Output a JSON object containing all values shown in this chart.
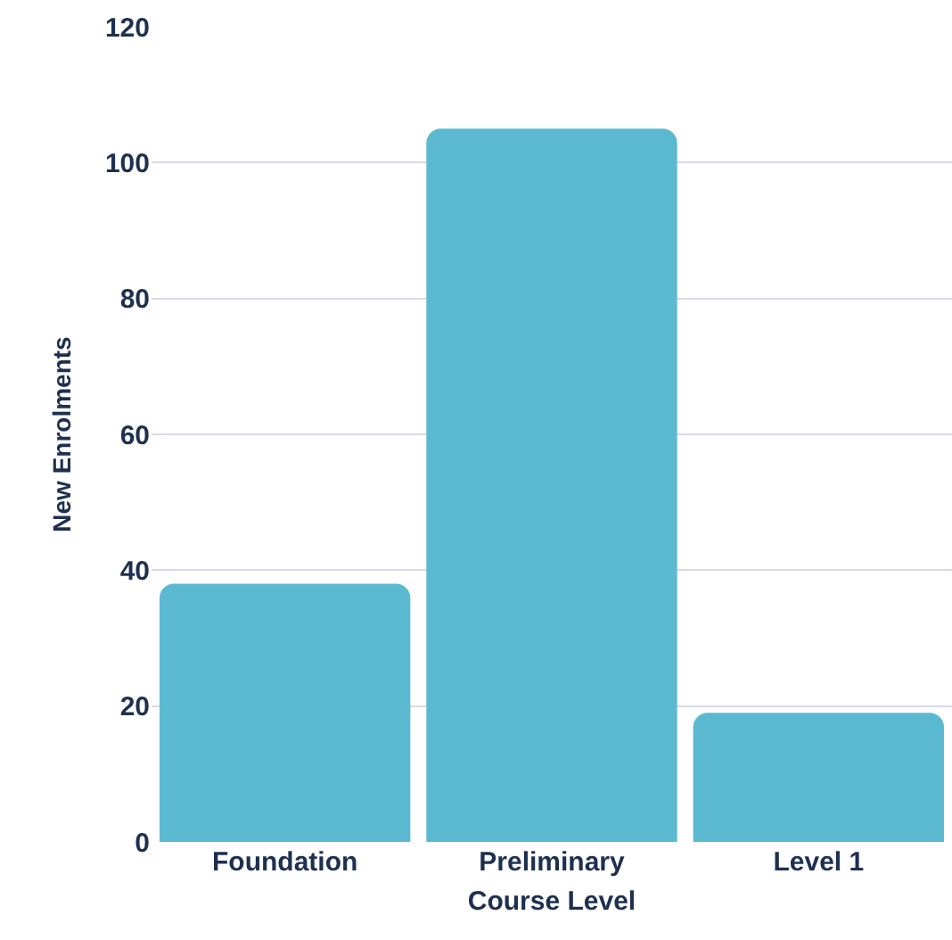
{
  "chart_data": {
    "type": "bar",
    "xlabel": "Course Level",
    "ylabel": "New Enrolments",
    "categories": [
      "Foundation",
      "Preliminary",
      "Level 1"
    ],
    "values": [
      38,
      105,
      19
    ],
    "color": "#5bbad1",
    "ylim": [
      0,
      120
    ],
    "yticks": [
      0,
      20,
      40,
      60,
      80,
      100,
      120
    ],
    "grid": "y",
    "legend": false
  }
}
